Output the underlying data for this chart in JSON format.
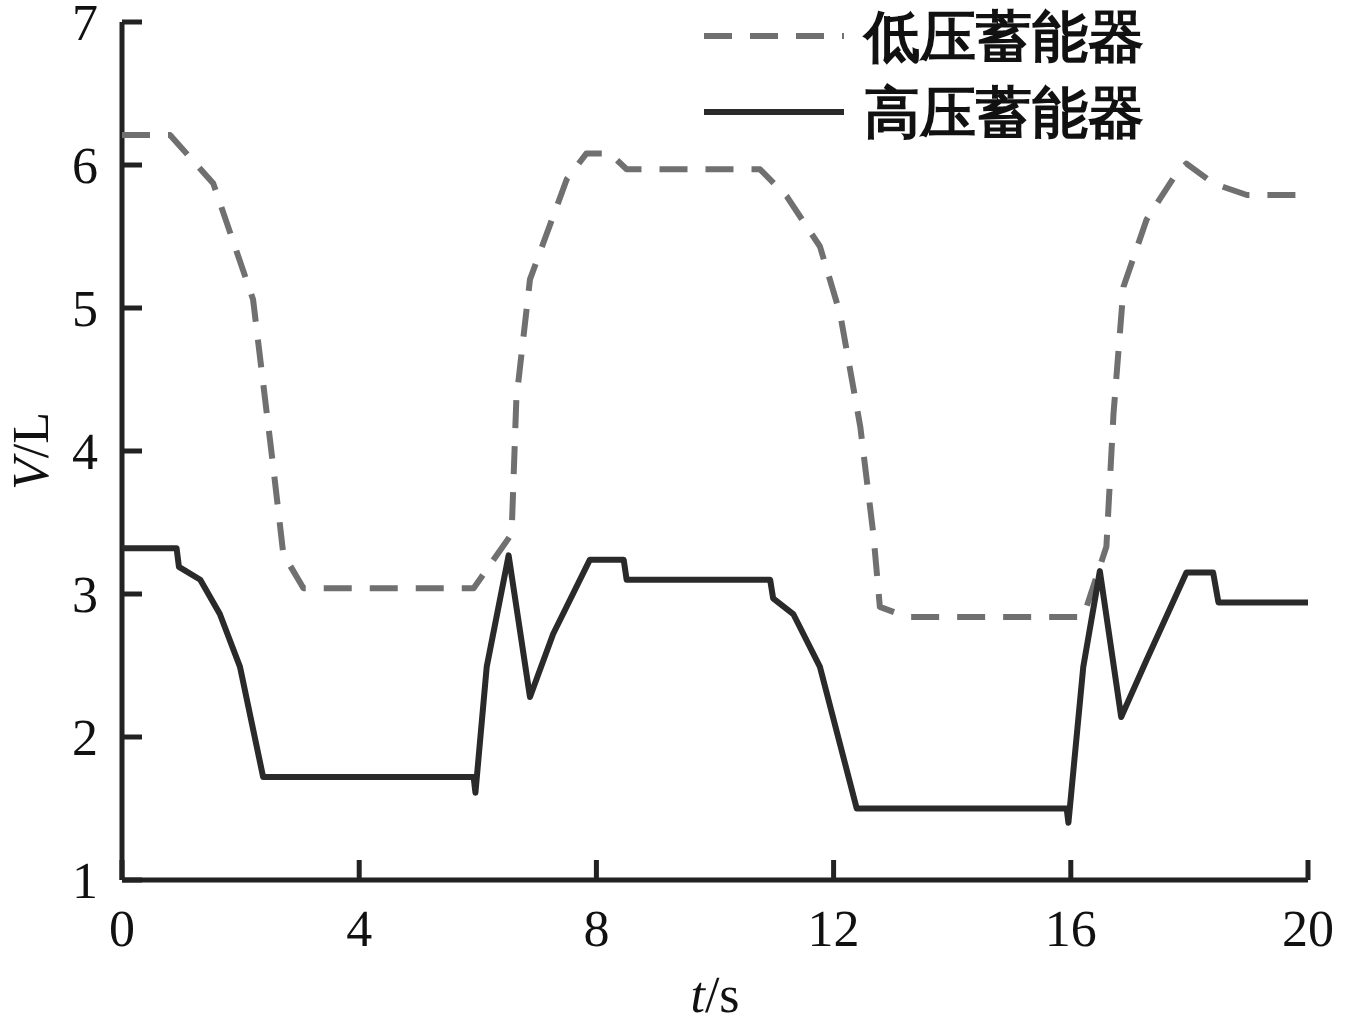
{
  "chart_data": {
    "type": "line",
    "xlabel": "*t*/s",
    "ylabel": "*V*/L",
    "xlim": [
      0,
      20
    ],
    "ylim": [
      1,
      7
    ],
    "xticks": [
      0,
      4,
      8,
      12,
      16,
      20
    ],
    "yticks": [
      1,
      2,
      3,
      4,
      5,
      6,
      7
    ],
    "legend": "top right",
    "series": [
      {
        "name": "低压蓄能器",
        "color": "#707070",
        "line_style": "dashed",
        "x": [
          0,
          0.81,
          1.54,
          2.21,
          2.55,
          2.72,
          3.06,
          5.93,
          6.57,
          6.65,
          6.88,
          7.5,
          7.83,
          8.23,
          8.51,
          10.76,
          11.21,
          11.77,
          12.11,
          12.45,
          12.67,
          12.78,
          13.23,
          16.21,
          16.6,
          16.72,
          16.89,
          17.28,
          17.78,
          17.95,
          18.41,
          18.97,
          20
        ],
        "values": [
          6.21,
          6.21,
          5.87,
          5.06,
          3.89,
          3.28,
          3.04,
          3.04,
          3.42,
          4.36,
          5.2,
          5.9,
          6.08,
          6.08,
          5.97,
          5.97,
          5.78,
          5.43,
          4.96,
          4.17,
          3.42,
          2.91,
          2.84,
          2.84,
          3.33,
          4.26,
          5.15,
          5.62,
          5.94,
          6.01,
          5.87,
          5.79,
          5.79
        ]
      },
      {
        "name": "高压蓄能器",
        "color": "#2a2a2a",
        "line_style": "solid",
        "x": [
          0,
          0.92,
          0.96,
          1.32,
          1.65,
          1.99,
          2.38,
          5.93,
          5.96,
          6.15,
          6.52,
          6.88,
          7.27,
          7.89,
          8.46,
          8.51,
          10.93,
          10.98,
          11.32,
          11.77,
          12.39,
          15.93,
          15.96,
          16.21,
          16.49,
          16.85,
          17.28,
          17.95,
          18.4,
          18.49,
          20
        ],
        "values": [
          3.32,
          3.32,
          3.19,
          3.1,
          2.86,
          2.49,
          1.72,
          1.72,
          1.61,
          2.49,
          3.27,
          2.28,
          2.72,
          3.24,
          3.24,
          3.1,
          3.1,
          2.97,
          2.86,
          2.49,
          1.5,
          1.5,
          1.4,
          2.49,
          3.16,
          2.14,
          2.54,
          3.15,
          3.15,
          2.94,
          2.94
        ]
      }
    ]
  }
}
